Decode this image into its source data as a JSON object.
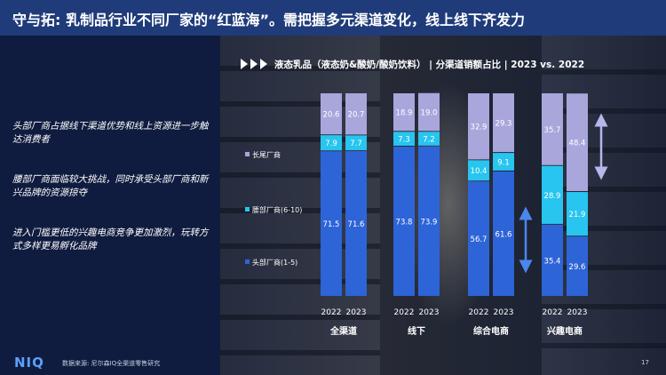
{
  "header": {
    "title": "守与拓: 乳制品行业不同厂家的“红蓝海”。需把握多元渠道变化，线上线下齐发力"
  },
  "left_panel": {
    "bullets": [
      "头部厂商占据线下渠道优势和线上资源进一步触达消费者",
      "腰部厂商面临较大挑战，同时承受头部厂商和新兴品牌的资源掠夺",
      "进入门槛更低的兴趣电商竞争更加激烈，玩转方式多样更易孵化品牌"
    ]
  },
  "chart_subtitle": "液态乳品（液态奶&酸奶/酸奶饮料）  | 分渠道销额占比 | 2023 vs. 2022",
  "chart_data": {
    "type": "bar",
    "stacked": true,
    "groups": [
      {
        "name": "全渠道",
        "years": [
          "2022",
          "2023"
        ]
      },
      {
        "name": "线下",
        "years": [
          "2022",
          "2023"
        ]
      },
      {
        "name": "综合电商",
        "years": [
          "2022",
          "2023"
        ]
      },
      {
        "name": "兴趣电商",
        "years": [
          "2022",
          "2023"
        ]
      }
    ],
    "series": [
      {
        "name": "头部厂商(1-5)",
        "color": "#2d64d8",
        "values": [
          [
            71.5,
            71.6
          ],
          [
            73.8,
            73.9
          ],
          [
            56.7,
            61.6
          ],
          [
            35.4,
            29.6
          ]
        ]
      },
      {
        "name": "腰部厂商(6-10)",
        "color": "#27c5ef",
        "values": [
          [
            7.9,
            7.7
          ],
          [
            7.3,
            7.2
          ],
          [
            10.4,
            9.1
          ],
          [
            28.9,
            21.9
          ]
        ]
      },
      {
        "name": "长尾厂商",
        "color": "#a9a6dc",
        "values": [
          [
            20.6,
            20.7
          ],
          [
            18.9,
            19.0
          ],
          [
            32.9,
            29.3
          ],
          [
            35.7,
            48.4
          ]
        ]
      }
    ],
    "ylim": [
      0,
      100
    ]
  },
  "footer": {
    "logo": "NIQ",
    "source": "数据来源: 尼尔森IQ全渠道零售研究",
    "page": "17"
  }
}
